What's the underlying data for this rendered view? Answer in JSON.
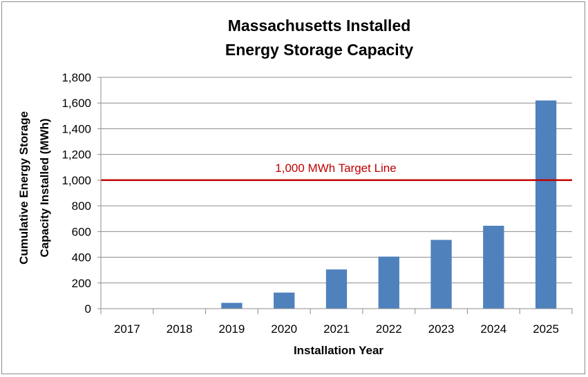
{
  "chart_data": {
    "type": "bar",
    "title": [
      "Massachusetts Installed",
      "Energy Storage Capacity"
    ],
    "xlabel": "Installation Year",
    "ylabel": [
      "Cumulative Energy Storage",
      "Capacity Installed (MWh)"
    ],
    "categories": [
      "2017",
      "2018",
      "2019",
      "2020",
      "2021",
      "2022",
      "2023",
      "2024",
      "2025"
    ],
    "values": [
      0,
      0,
      45,
      125,
      305,
      405,
      535,
      645,
      1620
    ],
    "ylim": [
      0,
      1800
    ],
    "yticks": [
      0,
      200,
      400,
      600,
      800,
      1000,
      1200,
      1400,
      1600,
      1800
    ],
    "ytick_labels": [
      "0",
      "200",
      "400",
      "600",
      "800",
      "1,000",
      "1,200",
      "1,400",
      "1,600",
      "1,800"
    ],
    "grid": true,
    "bar_color": "#4f81bd",
    "reference_line": {
      "value": 1000,
      "label": "1,000 MWh Target Line",
      "color": "#c00000"
    }
  }
}
